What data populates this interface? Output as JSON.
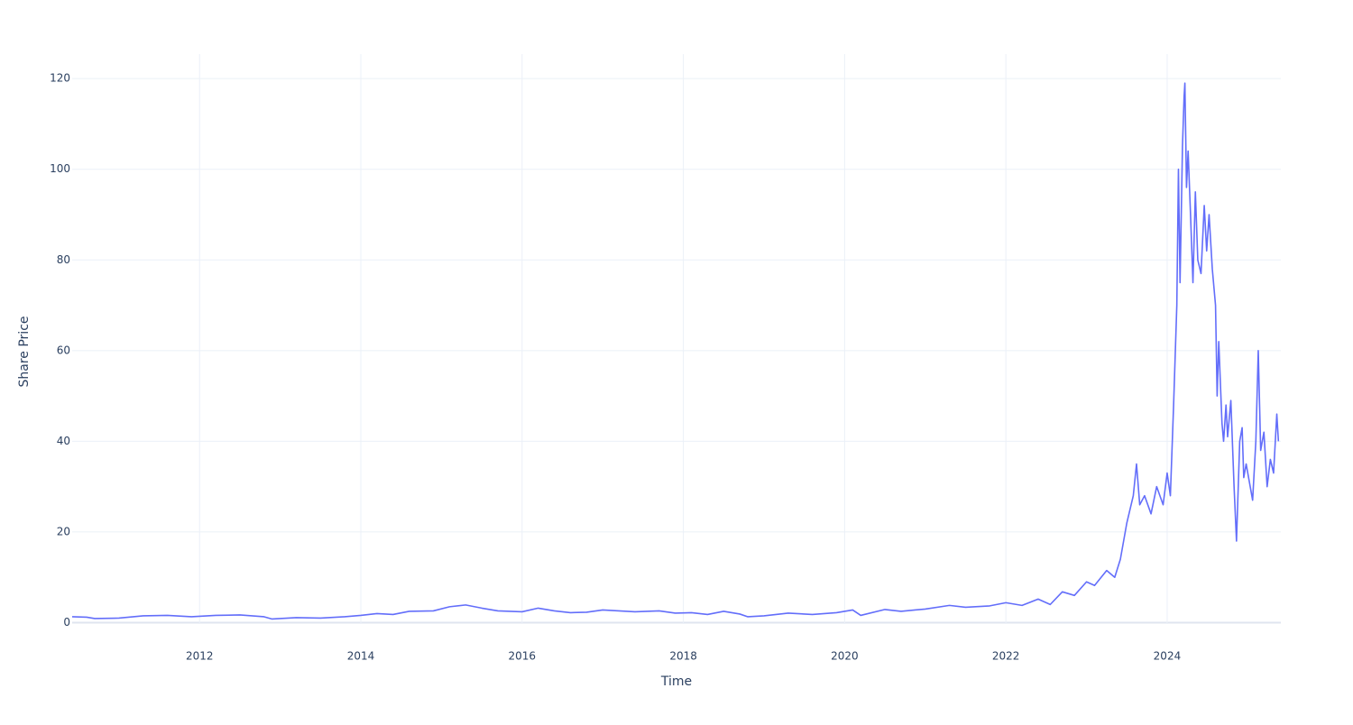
{
  "chart_data": {
    "type": "line",
    "xlabel": "Time",
    "ylabel": "Share Price",
    "x": [
      2010.42,
      2010.6,
      2010.7,
      2011.0,
      2011.3,
      2011.6,
      2011.9,
      2012.2,
      2012.5,
      2012.8,
      2012.9,
      2013.2,
      2013.5,
      2013.8,
      2014.0,
      2014.2,
      2014.4,
      2014.6,
      2014.9,
      2015.1,
      2015.3,
      2015.5,
      2015.7,
      2016.0,
      2016.2,
      2016.4,
      2016.6,
      2016.8,
      2017.0,
      2017.4,
      2017.7,
      2017.9,
      2018.1,
      2018.3,
      2018.5,
      2018.7,
      2018.8,
      2019.0,
      2019.3,
      2019.6,
      2019.9,
      2020.1,
      2020.2,
      2020.5,
      2020.7,
      2021.0,
      2021.3,
      2021.5,
      2021.8,
      2022.0,
      2022.2,
      2022.4,
      2022.55,
      2022.7,
      2022.85,
      2023.0,
      2023.1,
      2023.25,
      2023.35,
      2023.42,
      2023.5,
      2023.58,
      2023.62,
      2023.66,
      2023.72,
      2023.8,
      2023.87,
      2023.95,
      2024.0,
      2024.04,
      2024.08,
      2024.12,
      2024.14,
      2024.16,
      2024.19,
      2024.21,
      2024.22,
      2024.24,
      2024.26,
      2024.29,
      2024.32,
      2024.35,
      2024.38,
      2024.42,
      2024.46,
      2024.49,
      2024.52,
      2024.56,
      2024.6,
      2024.62,
      2024.64,
      2024.68,
      2024.7,
      2024.73,
      2024.75,
      2024.79,
      2024.83,
      2024.86,
      2024.9,
      2024.93,
      2024.95,
      2024.98,
      2025.02,
      2025.06,
      2025.1,
      2025.13,
      2025.16,
      2025.2,
      2025.24,
      2025.28,
      2025.32,
      2025.36,
      2025.38
    ],
    "values": [
      1.3,
      1.2,
      0.9,
      1.0,
      1.5,
      1.6,
      1.3,
      1.6,
      1.7,
      1.3,
      0.8,
      1.1,
      1.0,
      1.3,
      1.6,
      2.0,
      1.8,
      2.5,
      2.6,
      3.5,
      3.9,
      3.2,
      2.6,
      2.4,
      3.2,
      2.6,
      2.2,
      2.3,
      2.8,
      2.4,
      2.6,
      2.1,
      2.2,
      1.8,
      2.5,
      1.9,
      1.3,
      1.5,
      2.1,
      1.8,
      2.2,
      2.8,
      1.6,
      2.9,
      2.5,
      3.0,
      3.8,
      3.4,
      3.7,
      4.4,
      3.8,
      5.2,
      4.0,
      6.8,
      6.0,
      9.0,
      8.2,
      11.5,
      10.0,
      14,
      22,
      28,
      35,
      26,
      28,
      24,
      30,
      26,
      33,
      28,
      48,
      70,
      100,
      75,
      105,
      116,
      119,
      96,
      104,
      90,
      75,
      95,
      80,
      77,
      92,
      82,
      90,
      78,
      70,
      50,
      62,
      44,
      40,
      48,
      41,
      49,
      30,
      18,
      40,
      43,
      32,
      35,
      31,
      27,
      40,
      60,
      38,
      42,
      30,
      36,
      33,
      46,
      40
    ],
    "color": "#636efa",
    "xlim": [
      2010.42,
      2025.41
    ],
    "xticks": [
      2012,
      2014,
      2016,
      2018,
      2020,
      2022,
      2024
    ],
    "ylim": [
      -0.3,
      125.4
    ],
    "yticks": [
      0,
      20,
      40,
      60,
      80,
      100,
      120
    ],
    "grid": true
  }
}
